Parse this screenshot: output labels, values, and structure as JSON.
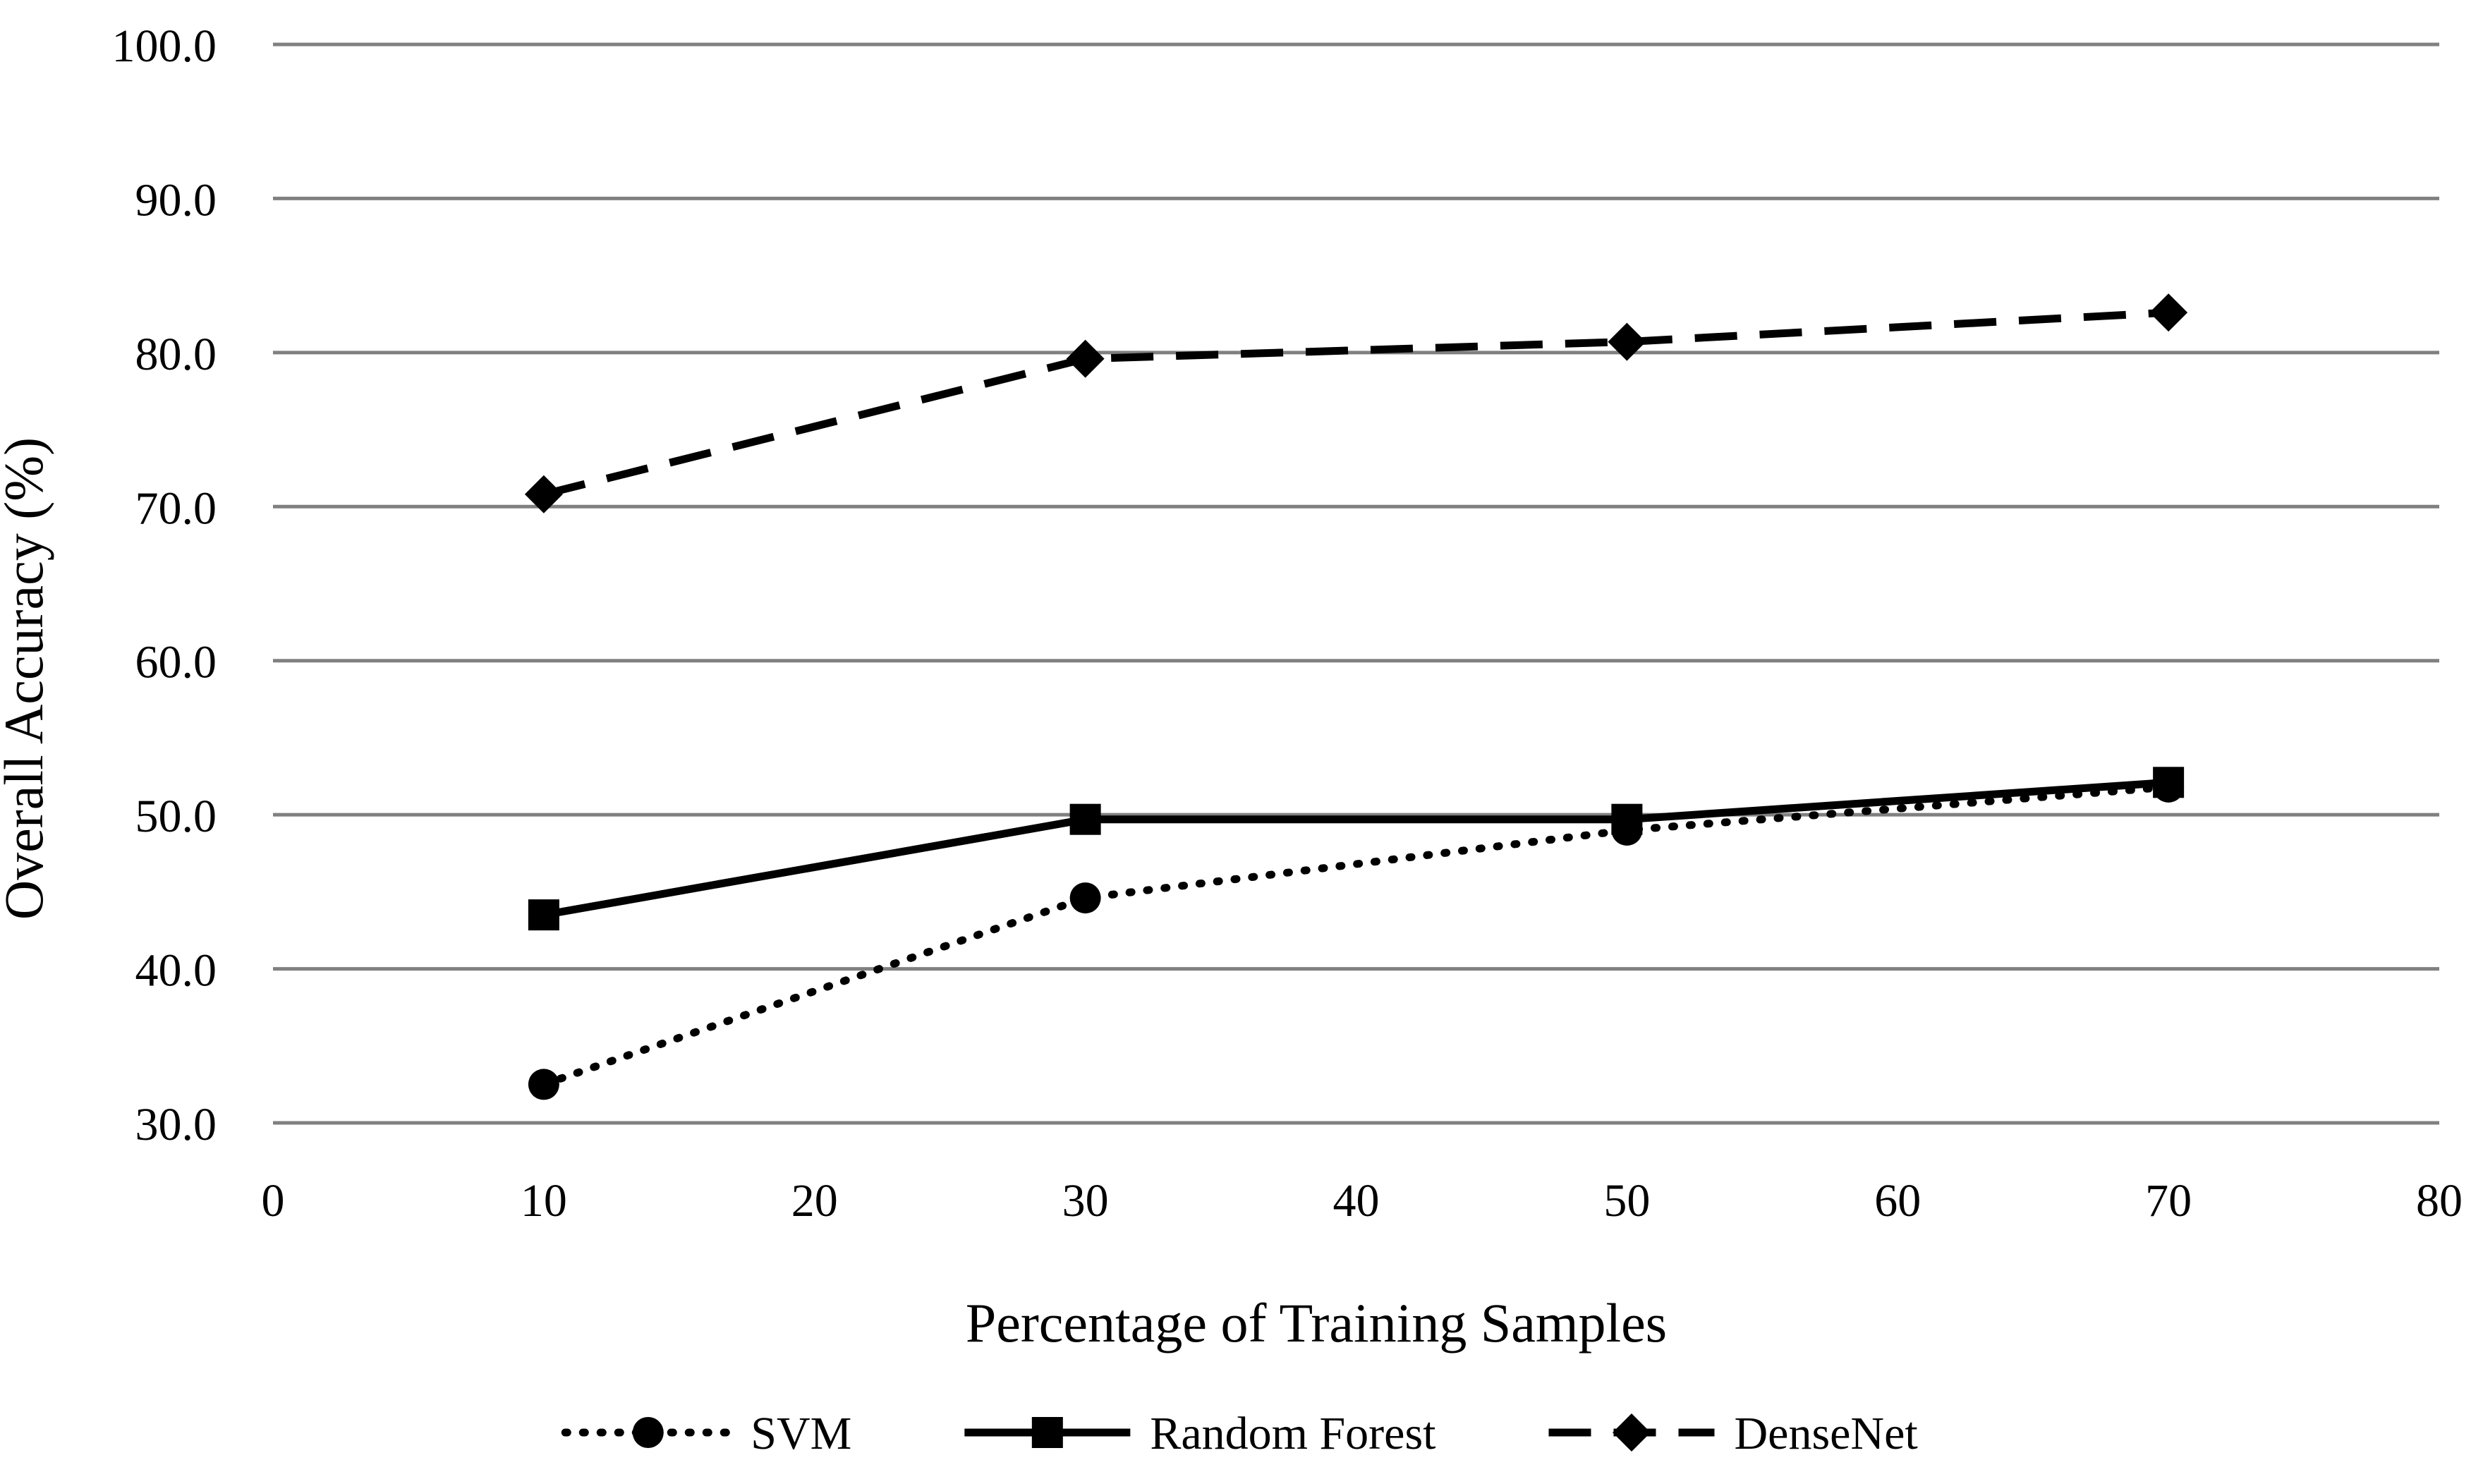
{
  "chart_data": {
    "type": "line",
    "title": "",
    "xlabel": "Percentage of Training Samples",
    "ylabel": "Overall Accuracy (%)",
    "xlim": [
      0,
      80
    ],
    "ylim": [
      30,
      100
    ],
    "x_ticks": [
      0,
      10,
      20,
      30,
      40,
      50,
      60,
      70,
      80
    ],
    "y_ticks": [
      30,
      40,
      50,
      60,
      70,
      80,
      90,
      100
    ],
    "x_tick_labels": [
      "0",
      "10",
      "20",
      "30",
      "40",
      "50",
      "60",
      "70",
      "80"
    ],
    "y_tick_labels": [
      "30.0",
      "40.0",
      "50.0",
      "60.0",
      "70.0",
      "80.0",
      "90.0",
      "100.0"
    ],
    "grid": "horizontal",
    "legend_position": "bottom",
    "x": [
      10,
      30,
      50,
      70
    ],
    "series": [
      {
        "name": "SVM",
        "values": [
          32.5,
          44.6,
          49.0,
          51.8
        ],
        "line_style": "dotted",
        "marker": "circle",
        "color": "#000000"
      },
      {
        "name": "Random Forest",
        "values": [
          43.5,
          49.7,
          49.7,
          52.1
        ],
        "line_style": "solid",
        "marker": "square",
        "color": "#000000"
      },
      {
        "name": "DenseNet",
        "values": [
          70.8,
          79.6,
          80.7,
          82.6
        ],
        "line_style": "dashed",
        "marker": "diamond",
        "color": "#000000"
      }
    ],
    "grid_color": "#808080"
  }
}
